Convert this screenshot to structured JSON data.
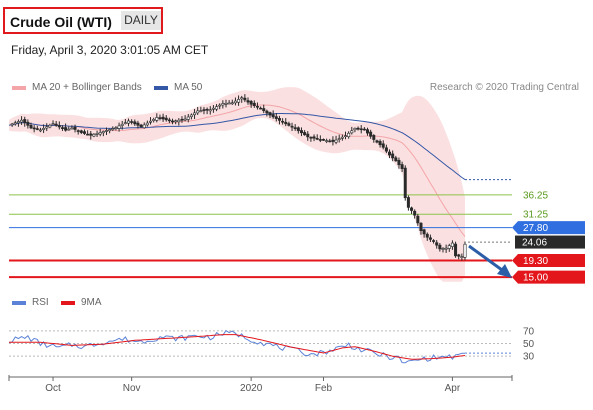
{
  "header": {
    "instrument": "Crude Oil (WTI)",
    "period": "DAILY",
    "timestamp": "Friday, April 3, 2020 3:01:05 AM CET",
    "credit": "Research © 2020 Trading Central"
  },
  "colors": {
    "bollinger": "#f3a5a8",
    "ma50": "#3457a6",
    "resistance": "#8cc34a",
    "pivot": "#2f6fe0",
    "support": "#e3161b",
    "price": "#2a2a2a",
    "rsi": "#5b82d6",
    "rsi_ma": "#e3161b",
    "arrow": "#2c5ea8"
  },
  "chart_data": [
    {
      "type": "candlestick",
      "legend": [
        "MA 20 + Bollinger Bands",
        "MA 50"
      ],
      "legend_position": "top-left",
      "x_ticks": [
        "Oct",
        "Nov",
        "2020",
        "Feb",
        "Apr"
      ],
      "y_range": [
        13.5,
        62
      ],
      "close_series": [
        [
          0,
          54.2
        ],
        [
          4,
          55.5
        ],
        [
          7,
          53.5
        ],
        [
          10,
          53.0
        ],
        [
          14,
          54.6
        ],
        [
          18,
          52.9
        ],
        [
          20,
          53.5
        ],
        [
          23,
          52.3
        ],
        [
          26,
          51.6
        ],
        [
          30,
          52.6
        ],
        [
          34,
          53.6
        ],
        [
          38,
          55.3
        ],
        [
          42,
          53.8
        ],
        [
          47,
          56.2
        ],
        [
          52,
          55.2
        ],
        [
          56,
          55.8
        ],
        [
          60,
          57.9
        ],
        [
          64,
          58.2
        ],
        [
          68,
          59.8
        ],
        [
          71,
          60.0
        ],
        [
          74,
          61.3
        ],
        [
          77,
          59.6
        ],
        [
          80,
          58.5
        ],
        [
          83,
          56.8
        ],
        [
          87,
          55.0
        ],
        [
          91,
          53.3
        ],
        [
          95,
          51.2
        ],
        [
          99,
          50.5
        ],
        [
          103,
          50.0
        ],
        [
          107,
          51.5
        ],
        [
          110,
          53.4
        ],
        [
          113,
          53.0
        ],
        [
          116,
          50.5
        ],
        [
          119,
          48.5
        ],
        [
          121,
          46.5
        ],
        [
          123,
          45.0
        ],
        [
          125,
          43.0
        ],
        [
          126,
          35.5
        ],
        [
          127,
          33.0
        ],
        [
          128,
          32.2
        ],
        [
          129,
          31.0
        ],
        [
          131,
          27.0
        ],
        [
          133,
          25.3
        ],
        [
          135,
          24.2
        ],
        [
          137,
          22.3
        ],
        [
          139,
          22.5
        ],
        [
          141,
          23.8
        ],
        [
          142,
          20.5
        ],
        [
          144,
          20.3
        ],
        [
          145,
          23.5
        ]
      ],
      "levels": [
        {
          "value": 36.25,
          "label": "36.25",
          "role": "resistance"
        },
        {
          "value": 31.25,
          "label": "31.25",
          "role": "resistance"
        },
        {
          "value": 27.8,
          "label": "27.80",
          "role": "pivot"
        },
        {
          "value": 24.06,
          "label": "24.06",
          "role": "last price"
        },
        {
          "value": 19.3,
          "label": "19.30",
          "role": "support"
        },
        {
          "value": 15.0,
          "label": "15.00",
          "role": "support"
        }
      ]
    },
    {
      "type": "line",
      "legend": [
        "RSI",
        "9MA"
      ],
      "legend_position": "top-left",
      "y_ticks": [
        70,
        50,
        30
      ],
      "y_range": [
        5,
        95
      ],
      "rsi_series": [
        [
          0,
          55
        ],
        [
          6,
          60
        ],
        [
          10,
          50
        ],
        [
          16,
          43
        ],
        [
          20,
          48
        ],
        [
          24,
          45
        ],
        [
          30,
          52
        ],
        [
          36,
          57
        ],
        [
          42,
          53
        ],
        [
          48,
          60
        ],
        [
          54,
          58
        ],
        [
          60,
          62
        ],
        [
          64,
          60
        ],
        [
          68,
          66
        ],
        [
          72,
          66
        ],
        [
          76,
          58
        ],
        [
          80,
          52
        ],
        [
          86,
          44
        ],
        [
          92,
          38
        ],
        [
          96,
          33
        ],
        [
          100,
          36
        ],
        [
          104,
          42
        ],
        [
          108,
          48
        ],
        [
          112,
          40
        ],
        [
          116,
          35
        ],
        [
          120,
          30
        ],
        [
          124,
          26
        ],
        [
          126,
          18
        ],
        [
          128,
          22
        ],
        [
          132,
          26
        ],
        [
          136,
          28
        ],
        [
          140,
          29
        ],
        [
          142,
          29
        ],
        [
          144,
          31
        ],
        [
          145,
          37
        ]
      ],
      "ma9_series": [
        [
          0,
          52
        ],
        [
          10,
          52
        ],
        [
          20,
          47
        ],
        [
          30,
          49
        ],
        [
          40,
          55
        ],
        [
          50,
          58
        ],
        [
          60,
          61
        ],
        [
          68,
          64
        ],
        [
          72,
          64
        ],
        [
          80,
          56
        ],
        [
          90,
          44
        ],
        [
          100,
          35
        ],
        [
          106,
          43
        ],
        [
          110,
          45
        ],
        [
          116,
          38
        ],
        [
          122,
          30
        ],
        [
          128,
          25
        ],
        [
          134,
          26
        ],
        [
          140,
          28
        ],
        [
          145,
          31
        ]
      ]
    }
  ]
}
